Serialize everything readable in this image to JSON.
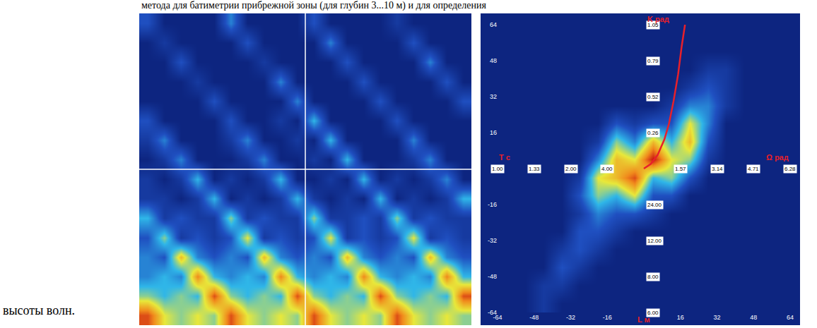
{
  "text": {
    "top_line": "метода для батиметрии прибрежной зоны (для глубин 3...10 м) и для определения",
    "caption": "высоты волн."
  },
  "chart_data": [
    {
      "type": "heatmap",
      "tick_labels": false,
      "zlim": [
        0,
        10
      ],
      "z": [
        [
          2,
          0,
          0,
          0,
          0,
          3,
          0,
          0,
          0,
          0,
          2,
          0,
          0,
          0,
          0,
          1,
          0,
          0,
          0,
          0
        ],
        [
          0,
          1,
          0,
          0,
          0,
          0,
          2,
          0,
          0,
          0,
          0,
          3,
          0,
          0,
          0,
          0,
          2,
          0,
          0,
          0
        ],
        [
          0,
          0,
          2,
          0,
          0,
          0,
          0,
          1,
          0,
          0,
          0,
          0,
          2,
          0,
          0,
          0,
          0,
          3,
          0,
          0
        ],
        [
          0,
          0,
          0,
          1,
          0,
          0,
          0,
          0,
          3,
          0,
          0,
          0,
          0,
          2,
          0,
          0,
          0,
          0,
          2,
          0
        ],
        [
          0,
          0,
          0,
          0,
          2,
          0,
          0,
          0,
          0,
          3,
          0,
          0,
          0,
          0,
          2,
          0,
          0,
          0,
          0,
          2
        ],
        [
          2,
          0,
          0,
          0,
          0,
          2,
          0,
          0,
          1,
          0,
          4,
          0,
          0,
          0,
          0,
          2,
          0,
          0,
          0,
          0
        ],
        [
          1,
          3,
          0,
          0,
          0,
          1,
          3,
          0,
          0,
          1,
          0,
          4,
          0,
          0,
          0,
          0,
          3,
          0,
          0,
          0
        ],
        [
          0,
          1,
          3,
          0,
          0,
          0,
          1,
          3,
          0,
          0,
          1,
          0,
          4,
          0,
          0,
          0,
          1,
          3,
          0,
          0
        ],
        [
          1,
          0,
          1,
          4,
          0,
          1,
          0,
          1,
          4,
          0,
          0,
          1,
          0,
          4,
          0,
          1,
          0,
          1,
          3,
          0
        ],
        [
          1,
          1,
          0,
          1,
          4,
          0,
          1,
          0,
          1,
          4,
          1,
          0,
          1,
          0,
          4,
          0,
          1,
          0,
          1,
          4
        ],
        [
          4,
          1,
          2,
          1,
          1,
          5,
          1,
          2,
          1,
          1,
          5,
          1,
          1,
          2,
          1,
          5,
          1,
          2,
          1,
          1
        ],
        [
          2,
          5,
          1,
          2,
          1,
          2,
          6,
          1,
          2,
          1,
          2,
          6,
          1,
          2,
          1,
          2,
          6,
          1,
          2,
          1
        ],
        [
          3,
          2,
          7,
          3,
          2,
          3,
          2,
          7,
          3,
          2,
          3,
          2,
          7,
          3,
          2,
          3,
          2,
          7,
          3,
          2
        ],
        [
          3,
          4,
          3,
          8,
          4,
          3,
          4,
          3,
          8,
          4,
          3,
          4,
          3,
          8,
          4,
          3,
          4,
          3,
          8,
          4
        ],
        [
          5,
          4,
          5,
          4,
          9,
          5,
          4,
          5,
          4,
          9,
          5,
          4,
          5,
          4,
          9,
          5,
          4,
          5,
          4,
          9
        ],
        [
          9,
          6,
          5,
          6,
          5,
          9,
          6,
          5,
          6,
          5,
          9,
          6,
          5,
          6,
          5,
          9,
          6,
          5,
          6,
          5
        ]
      ]
    },
    {
      "type": "heatmap",
      "grid": true,
      "xlim": [
        -64,
        64
      ],
      "ylim": [
        -64,
        64
      ],
      "xticks": [
        -64,
        -48,
        -32,
        -16,
        16,
        32,
        48,
        64
      ],
      "yticks": [
        -64,
        -48,
        -32,
        -16,
        16,
        32,
        48,
        64
      ],
      "zlim": [
        0,
        10
      ],
      "x": [
        -60,
        -52,
        -44,
        -36,
        -28,
        -20,
        -12,
        -4,
        4,
        12,
        20,
        28,
        36,
        44,
        52,
        60
      ],
      "y": [
        -60,
        -52,
        -44,
        -36,
        -28,
        -20,
        -12,
        -4,
        4,
        12,
        20,
        28,
        36,
        44,
        52,
        60
      ],
      "z": [
        [
          0,
          0,
          1,
          0,
          0,
          0,
          0,
          0,
          0,
          0,
          0,
          0,
          0,
          0,
          0,
          0
        ],
        [
          0,
          0,
          1,
          1,
          0,
          0,
          0,
          0,
          0,
          0,
          0,
          0,
          0,
          0,
          0,
          0
        ],
        [
          0,
          0,
          0,
          2,
          1,
          0,
          0,
          0,
          0,
          0,
          0,
          0,
          0,
          0,
          0,
          0
        ],
        [
          0,
          0,
          0,
          1,
          2,
          1,
          0,
          0,
          0,
          0,
          0,
          0,
          0,
          0,
          0,
          0
        ],
        [
          0,
          0,
          0,
          0,
          2,
          2,
          1,
          0,
          0,
          0,
          0,
          0,
          0,
          0,
          0,
          0
        ],
        [
          0,
          0,
          0,
          0,
          1,
          3,
          2,
          2,
          1,
          0,
          0,
          0,
          0,
          0,
          0,
          0
        ],
        [
          0,
          0,
          0,
          0,
          2,
          5,
          4,
          6,
          2,
          2,
          0,
          0,
          0,
          0,
          0,
          0
        ],
        [
          0,
          0,
          0,
          0,
          1,
          6,
          7,
          9,
          4,
          5,
          2,
          0,
          0,
          0,
          0,
          0
        ],
        [
          0,
          0,
          0,
          0,
          0,
          3,
          7,
          6,
          10,
          6,
          5,
          1,
          0,
          0,
          0,
          0
        ],
        [
          0,
          0,
          0,
          0,
          0,
          1,
          5,
          3,
          7,
          4,
          7,
          2,
          0,
          0,
          0,
          0
        ],
        [
          0,
          0,
          0,
          0,
          0,
          0,
          2,
          1,
          2,
          2,
          6,
          3,
          0,
          0,
          0,
          0
        ],
        [
          0,
          0,
          0,
          0,
          0,
          0,
          0,
          0,
          0,
          1,
          3,
          3,
          1,
          0,
          0,
          0
        ],
        [
          0,
          0,
          0,
          0,
          0,
          0,
          0,
          0,
          0,
          0,
          1,
          2,
          1,
          0,
          0,
          0
        ],
        [
          0,
          0,
          0,
          0,
          0,
          0,
          0,
          0,
          0,
          0,
          0,
          1,
          1,
          0,
          0,
          0
        ],
        [
          0,
          0,
          0,
          0,
          0,
          0,
          0,
          0,
          0,
          0,
          0,
          0,
          0,
          0,
          0,
          0
        ],
        [
          0,
          0,
          0,
          0,
          0,
          0,
          0,
          0,
          0,
          0,
          0,
          0,
          0,
          0,
          0,
          0
        ]
      ],
      "inner_xticks": [
        {
          "value": -64,
          "label": "1.00"
        },
        {
          "value": -48,
          "label": "1.33"
        },
        {
          "value": -32,
          "label": "2.00"
        },
        {
          "value": -16,
          "label": "4.00"
        },
        {
          "value": 16,
          "label": "1.57"
        },
        {
          "value": 32,
          "label": "3.14"
        },
        {
          "value": 48,
          "label": "4.71"
        },
        {
          "value": 64,
          "label": "6.28"
        }
      ],
      "inner_yticks": [
        {
          "value": 64,
          "label": "1.05"
        },
        {
          "value": 48,
          "label": "0.79"
        },
        {
          "value": 32,
          "label": "0.52"
        },
        {
          "value": 16,
          "label": "0.26"
        },
        {
          "value": -16,
          "label": "24.00"
        },
        {
          "value": -32,
          "label": "12.00"
        },
        {
          "value": -48,
          "label": "8.00"
        },
        {
          "value": -64,
          "label": "6.00"
        }
      ],
      "axis_titles": {
        "top": "K рад",
        "right": "Ω рад",
        "left": "T c",
        "bottom": "L м"
      },
      "series": [
        {
          "type": "line",
          "color": "#e8202a",
          "x": [
            0,
            3,
            6,
            9,
            11,
            13,
            15,
            16.5,
            18
          ],
          "values": [
            0,
            2,
            6,
            13,
            20,
            30,
            42,
            54,
            64
          ]
        }
      ]
    }
  ]
}
